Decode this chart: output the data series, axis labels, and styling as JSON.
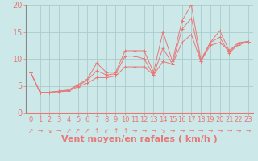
{
  "xlabel": "Vent moyen/en rafales ( km/h )",
  "background_color": "#cce8e8",
  "grid_color": "#aacccc",
  "line_color": "#e87878",
  "xlim": [
    -0.5,
    23.5
  ],
  "ylim": [
    0,
    20
  ],
  "xticks": [
    0,
    1,
    2,
    3,
    4,
    5,
    6,
    7,
    8,
    9,
    10,
    11,
    12,
    13,
    14,
    15,
    16,
    17,
    18,
    19,
    20,
    21,
    22,
    23
  ],
  "yticks": [
    0,
    5,
    10,
    15,
    20
  ],
  "series": [
    {
      "x": [
        0,
        1,
        2,
        3,
        4,
        5,
        6,
        7,
        8,
        9,
        10,
        11,
        12,
        13,
        14,
        15,
        16,
        17,
        18,
        19,
        20,
        21,
        22,
        23
      ],
      "y": [
        7.5,
        3.8,
        3.8,
        4.0,
        4.2,
        5.2,
        6.2,
        9.2,
        7.5,
        7.5,
        11.5,
        11.5,
        11.5,
        7.5,
        15.0,
        9.5,
        17.0,
        20.0,
        9.8,
        13.0,
        15.2,
        11.5,
        13.0,
        13.2
      ]
    },
    {
      "x": [
        0,
        1,
        2,
        3,
        4,
        5,
        6,
        7,
        8,
        9,
        10,
        11,
        12,
        13,
        14,
        15,
        16,
        17,
        18,
        19,
        20,
        21,
        22,
        23
      ],
      "y": [
        7.5,
        3.8,
        3.8,
        4.0,
        4.2,
        5.0,
        6.0,
        7.8,
        7.0,
        7.2,
        10.5,
        10.5,
        10.0,
        7.0,
        12.0,
        9.0,
        15.5,
        17.5,
        9.5,
        13.0,
        14.0,
        11.0,
        12.8,
        13.2
      ]
    },
    {
      "x": [
        0,
        1,
        2,
        3,
        4,
        5,
        6,
        7,
        8,
        9,
        10,
        11,
        12,
        13,
        14,
        15,
        16,
        17,
        18,
        19,
        20,
        21,
        22,
        23
      ],
      "y": [
        7.5,
        3.8,
        3.8,
        3.9,
        4.0,
        4.8,
        5.5,
        6.5,
        6.5,
        6.8,
        8.5,
        8.5,
        8.5,
        7.0,
        9.5,
        9.0,
        13.0,
        14.5,
        9.5,
        12.5,
        13.0,
        11.5,
        12.5,
        13.2
      ]
    }
  ],
  "arrows": [
    "↗",
    "→",
    "↘",
    "→",
    "↗",
    "↗",
    "↗",
    "↑",
    "↙",
    "↑",
    "↑",
    "→",
    "→",
    "→",
    "↘",
    "→",
    "→",
    "→",
    "→",
    "→",
    "→",
    "→",
    "→",
    "→"
  ],
  "xlabel_fontsize": 8,
  "tick_fontsize": 6,
  "arrow_fontsize": 5.5,
  "marker_size": 2.5
}
